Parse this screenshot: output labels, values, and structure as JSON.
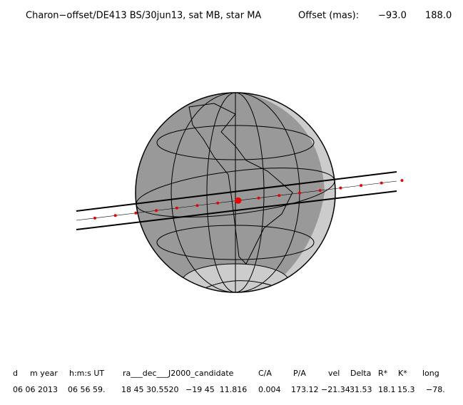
{
  "header": {
    "title": "Charon−offset/DE413 BS/30jun13, sat MB, star MA",
    "offset_label": "Offset (mas):",
    "offset_values": [
      "−93.0",
      "188.0"
    ]
  },
  "table": {
    "columns": [
      "d",
      "m year",
      "h:m:s UT",
      "ra___dec___J2000_candidate",
      "C/A",
      "P/A",
      "vel",
      "Delta",
      "R*",
      "K*",
      "long"
    ],
    "values": [
      "06 06 2013",
      "06 56 59.",
      "18 45 30.5520",
      "−19 45  11.816",
      "0.004",
      "173.12",
      "−21.34",
      "31.53",
      "18.1",
      "15.3",
      "−78."
    ]
  }
}
